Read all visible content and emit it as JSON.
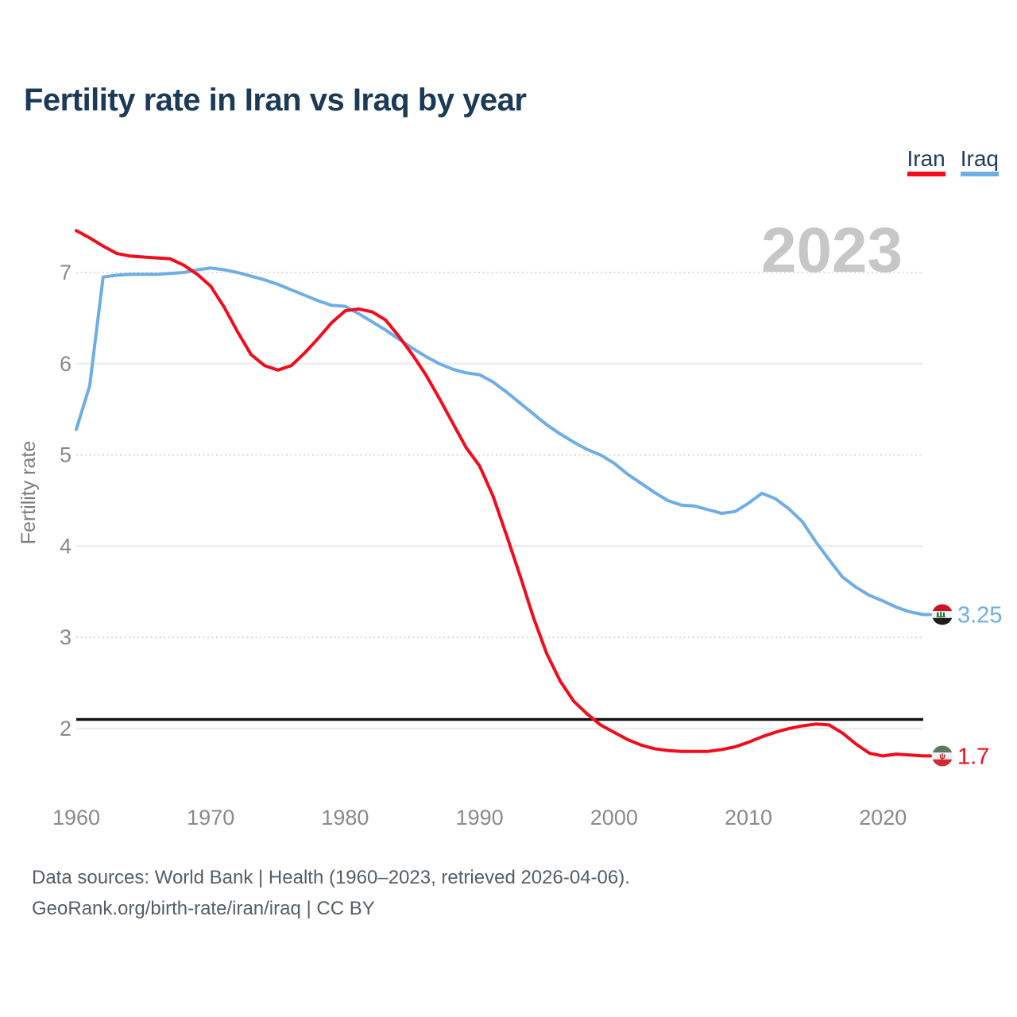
{
  "header": {
    "title": "Fertility rate in Iran vs Iraq by year"
  },
  "legend": {
    "items": [
      {
        "label": "Iran",
        "color": "#f30b1c"
      },
      {
        "label": "Iraq",
        "color": "#6fade6"
      }
    ]
  },
  "watermark": "2023",
  "footer": {
    "line1": "Data sources: World Bank | Health (1960–2023, retrieved 2026-04-06).",
    "line2": "GeoRank.org/birth-rate/iran/iraq | CC BY"
  },
  "chart_data": {
    "type": "line",
    "title": "Fertility rate in Iran vs Iraq by year",
    "xlabel": "",
    "ylabel": "Fertility rate",
    "xlim": [
      1960,
      2023
    ],
    "ylim": [
      1.5,
      7.6
    ],
    "x_ticks": [
      1960,
      1970,
      1980,
      1990,
      2000,
      2010,
      2020
    ],
    "y_ticks": [
      2,
      3,
      4,
      5,
      6,
      7
    ],
    "grid": "horizontal",
    "legend_position": "top-right",
    "reference_line": {
      "value": 2.1,
      "color": "#111111"
    },
    "x": [
      1960,
      1961,
      1962,
      1963,
      1964,
      1965,
      1966,
      1967,
      1968,
      1969,
      1970,
      1971,
      1972,
      1973,
      1974,
      1975,
      1976,
      1977,
      1978,
      1979,
      1980,
      1981,
      1982,
      1983,
      1984,
      1985,
      1986,
      1987,
      1988,
      1989,
      1990,
      1991,
      1992,
      1993,
      1994,
      1995,
      1996,
      1997,
      1998,
      1999,
      2000,
      2001,
      2002,
      2003,
      2004,
      2005,
      2006,
      2007,
      2008,
      2009,
      2010,
      2011,
      2012,
      2013,
      2014,
      2015,
      2016,
      2017,
      2018,
      2019,
      2020,
      2021,
      2022,
      2023
    ],
    "series": [
      {
        "name": "Iraq",
        "color": "#6fade6",
        "end_value_label": "3.25",
        "end_flag": "iraq-flag",
        "flag_colors": {
          "top": "#ce1126",
          "middle": "#f4f4f4",
          "bottom": "#1d1d1d",
          "emblem": "#17742f"
        },
        "values": [
          5.28,
          5.76,
          6.95,
          6.97,
          6.98,
          6.98,
          6.98,
          6.99,
          7.0,
          7.03,
          7.05,
          7.03,
          7.0,
          6.96,
          6.92,
          6.87,
          6.81,
          6.75,
          6.69,
          6.64,
          6.63,
          6.55,
          6.46,
          6.37,
          6.27,
          6.17,
          6.08,
          6.0,
          5.94,
          5.9,
          5.88,
          5.8,
          5.69,
          5.57,
          5.45,
          5.33,
          5.23,
          5.14,
          5.06,
          5.0,
          4.91,
          4.79,
          4.69,
          4.59,
          4.5,
          4.45,
          4.44,
          4.4,
          4.36,
          4.38,
          4.47,
          4.58,
          4.52,
          4.41,
          4.27,
          4.05,
          3.85,
          3.66,
          3.55,
          3.46,
          3.4,
          3.33,
          3.28,
          3.25
        ]
      },
      {
        "name": "Iran",
        "color": "#f30b1c",
        "end_value_label": "1.7",
        "end_flag": "iran-flag",
        "flag_colors": {
          "top": "#5d7a60",
          "middle": "#f2f2f2",
          "bottom": "#cf2b36",
          "emblem": "#c1121f"
        },
        "values": [
          7.46,
          7.38,
          7.29,
          7.21,
          7.18,
          7.17,
          7.16,
          7.15,
          7.08,
          6.98,
          6.85,
          6.62,
          6.35,
          6.1,
          5.98,
          5.93,
          5.98,
          6.12,
          6.28,
          6.45,
          6.58,
          6.6,
          6.57,
          6.48,
          6.3,
          6.1,
          5.88,
          5.62,
          5.35,
          5.08,
          4.88,
          4.55,
          4.12,
          3.68,
          3.22,
          2.82,
          2.52,
          2.3,
          2.16,
          2.04,
          1.96,
          1.88,
          1.82,
          1.78,
          1.76,
          1.75,
          1.75,
          1.75,
          1.77,
          1.8,
          1.85,
          1.91,
          1.96,
          2.0,
          2.03,
          2.05,
          2.04,
          1.95,
          1.83,
          1.73,
          1.7,
          1.72,
          1.71,
          1.7
        ]
      }
    ]
  }
}
